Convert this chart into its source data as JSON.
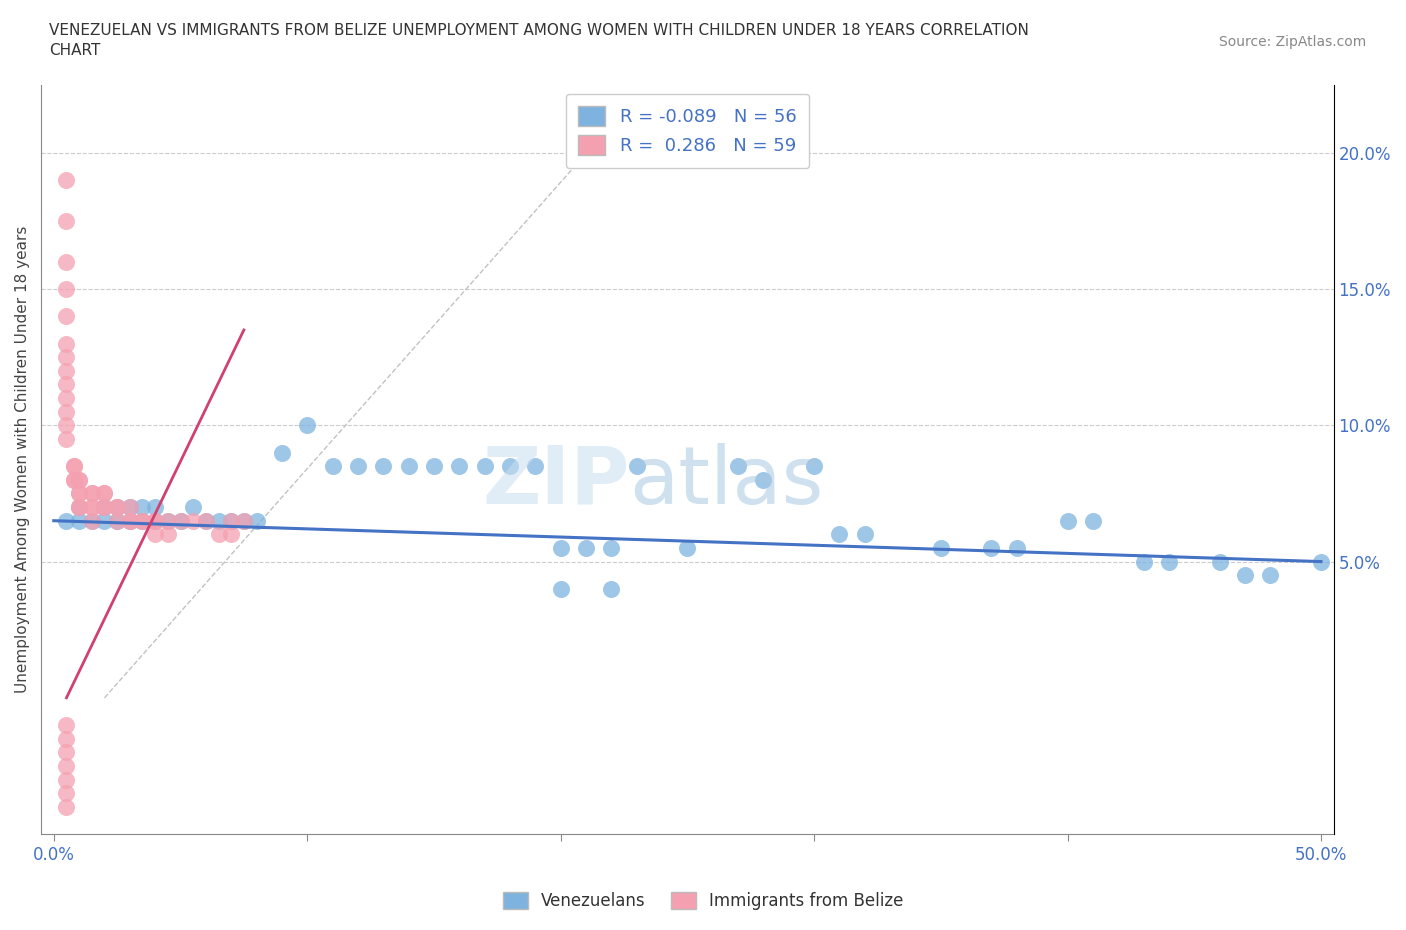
{
  "title": "VENEZUELAN VS IMMIGRANTS FROM BELIZE UNEMPLOYMENT AMONG WOMEN WITH CHILDREN UNDER 18 YEARS CORRELATION\nCHART",
  "source": "Source: ZipAtlas.com",
  "ylabel": "Unemployment Among Women with Children Under 18 years",
  "xlim": [
    -0.005,
    0.505
  ],
  "ylim": [
    -0.05,
    0.225
  ],
  "xticks": [
    0.0,
    0.1,
    0.2,
    0.3,
    0.4,
    0.5
  ],
  "xtick_labels": [
    "0.0%",
    "",
    "",
    "",
    "",
    "50.0%"
  ],
  "yticks_right": [
    0.05,
    0.1,
    0.15,
    0.2
  ],
  "ytick_right_labels": [
    "5.0%",
    "10.0%",
    "15.0%",
    "20.0%"
  ],
  "venezuelans_R": -0.089,
  "venezuelans_N": 56,
  "belize_R": 0.286,
  "belize_N": 59,
  "blue_color": "#7EB3E0",
  "pink_color": "#F4A0B0",
  "blue_line_color": "#4472C4",
  "pink_line_color": "#D04070",
  "grid_color": "#CCCCCC",
  "blue_line": {
    "x0": 0.0,
    "y0": 0.065,
    "x1": 0.5,
    "y1": 0.05
  },
  "pink_line": {
    "x0": 0.005,
    "y0": 0.0,
    "x1": 0.075,
    "y1": 0.135
  },
  "gray_dash_line": {
    "x0": 0.02,
    "y0": 0.0,
    "x1": 0.215,
    "y1": 0.205
  },
  "ven_x": [
    0.005,
    0.01,
    0.01,
    0.015,
    0.02,
    0.02,
    0.025,
    0.025,
    0.03,
    0.03,
    0.035,
    0.035,
    0.04,
    0.04,
    0.045,
    0.05,
    0.055,
    0.06,
    0.065,
    0.07,
    0.075,
    0.08,
    0.09,
    0.1,
    0.11,
    0.12,
    0.13,
    0.14,
    0.15,
    0.16,
    0.17,
    0.18,
    0.19,
    0.2,
    0.21,
    0.22,
    0.23,
    0.25,
    0.27,
    0.28,
    0.3,
    0.31,
    0.32,
    0.35,
    0.37,
    0.38,
    0.4,
    0.41,
    0.43,
    0.44,
    0.46,
    0.47,
    0.48,
    0.5,
    0.2,
    0.22
  ],
  "ven_y": [
    0.065,
    0.065,
    0.07,
    0.065,
    0.065,
    0.07,
    0.065,
    0.07,
    0.065,
    0.07,
    0.065,
    0.07,
    0.065,
    0.07,
    0.065,
    0.065,
    0.07,
    0.065,
    0.065,
    0.065,
    0.065,
    0.065,
    0.09,
    0.1,
    0.085,
    0.085,
    0.085,
    0.085,
    0.085,
    0.085,
    0.085,
    0.085,
    0.085,
    0.055,
    0.055,
    0.055,
    0.085,
    0.055,
    0.085,
    0.08,
    0.085,
    0.06,
    0.06,
    0.055,
    0.055,
    0.055,
    0.065,
    0.065,
    0.05,
    0.05,
    0.05,
    0.045,
    0.045,
    0.05,
    0.04,
    0.04
  ],
  "bel_x": [
    0.005,
    0.005,
    0.005,
    0.005,
    0.005,
    0.005,
    0.005,
    0.005,
    0.005,
    0.005,
    0.005,
    0.005,
    0.005,
    0.008,
    0.008,
    0.008,
    0.008,
    0.01,
    0.01,
    0.01,
    0.01,
    0.01,
    0.01,
    0.015,
    0.015,
    0.015,
    0.015,
    0.015,
    0.02,
    0.02,
    0.02,
    0.02,
    0.025,
    0.025,
    0.025,
    0.03,
    0.03,
    0.03,
    0.035,
    0.035,
    0.04,
    0.04,
    0.04,
    0.045,
    0.045,
    0.05,
    0.055,
    0.06,
    0.065,
    0.07,
    0.07,
    0.075,
    0.005,
    0.005,
    0.005,
    0.005,
    0.005,
    0.005,
    0.005
  ],
  "bel_y": [
    0.19,
    0.175,
    0.16,
    0.15,
    0.14,
    0.13,
    0.125,
    0.12,
    0.115,
    0.11,
    0.105,
    0.1,
    0.095,
    0.085,
    0.085,
    0.08,
    0.08,
    0.08,
    0.08,
    0.075,
    0.075,
    0.07,
    0.07,
    0.075,
    0.075,
    0.07,
    0.07,
    0.065,
    0.075,
    0.075,
    0.07,
    0.07,
    0.07,
    0.07,
    0.065,
    0.07,
    0.065,
    0.065,
    0.065,
    0.065,
    0.065,
    0.065,
    0.06,
    0.06,
    0.065,
    0.065,
    0.065,
    0.065,
    0.06,
    0.065,
    0.06,
    0.065,
    -0.01,
    -0.015,
    -0.02,
    -0.025,
    -0.03,
    -0.035,
    -0.04
  ]
}
